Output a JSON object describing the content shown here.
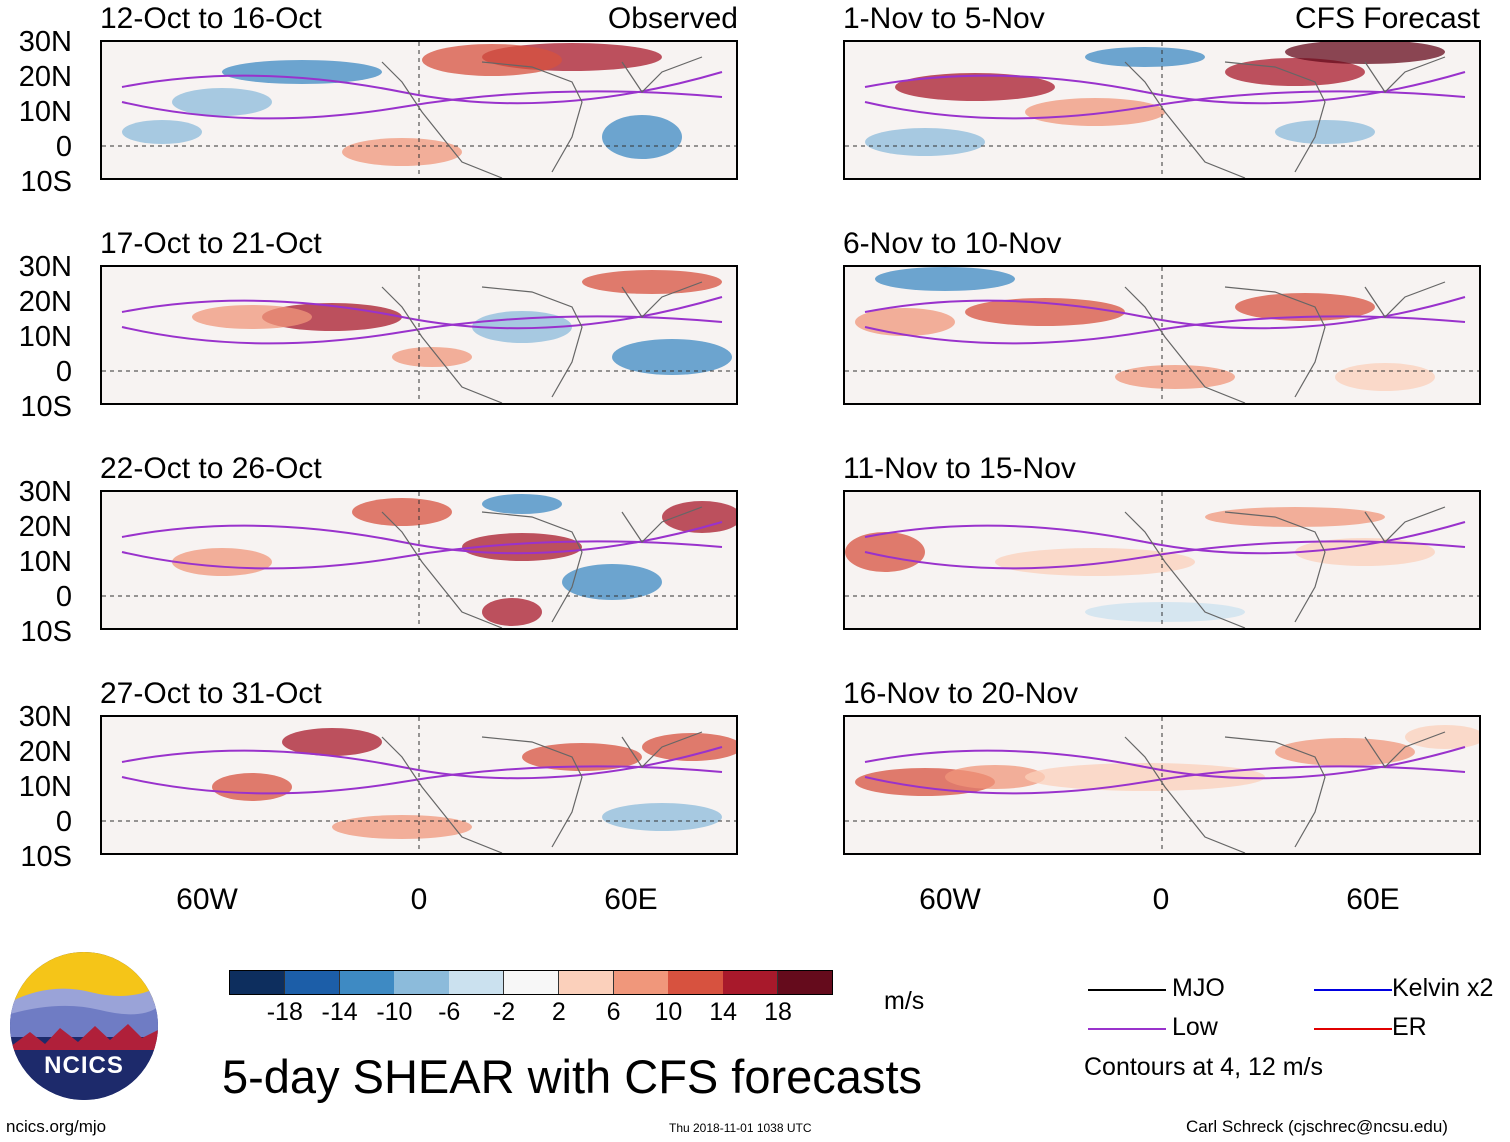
{
  "panels": [
    {
      "title": "12-Oct to 16-Oct",
      "tag": "Observed"
    },
    {
      "title": "17-Oct to 21-Oct",
      "tag": ""
    },
    {
      "title": "22-Oct to 26-Oct",
      "tag": ""
    },
    {
      "title": "27-Oct to 31-Oct",
      "tag": ""
    },
    {
      "title": "1-Nov to 5-Nov",
      "tag": "CFS Forecast"
    },
    {
      "title": "6-Nov to 10-Nov",
      "tag": ""
    },
    {
      "title": "11-Nov to 15-Nov",
      "tag": ""
    },
    {
      "title": "16-Nov to 20-Nov",
      "tag": ""
    }
  ],
  "lat_labels": [
    "30N",
    "20N",
    "10N",
    "0",
    "10S"
  ],
  "lon_labels": [
    "60W",
    "0",
    "60E"
  ],
  "colorbar": {
    "ticks": [
      "-18",
      "-14",
      "-10",
      "-6",
      "-2",
      "2",
      "6",
      "10",
      "14",
      "18"
    ],
    "colors": [
      "#0d2e5e",
      "#1c5ea8",
      "#3e8ac3",
      "#8cbbdb",
      "#cbe1ef",
      "#f7f7f7",
      "#fbd0bb",
      "#f0977b",
      "#d7523f",
      "#a8192b",
      "#650b1c"
    ],
    "units": "m/s"
  },
  "legend": {
    "items": [
      {
        "label": "MJO",
        "color": "#000000"
      },
      {
        "label": "Kelvin x2",
        "color": "#0000e0"
      },
      {
        "label": "Low",
        "color": "#9932cc"
      },
      {
        "label": "ER",
        "color": "#e00000"
      }
    ],
    "note": "Contours at 4, 12 m/s"
  },
  "main_title": "5-day SHEAR with CFS forecasts",
  "logo_text": "NCICS",
  "footer": {
    "left": "ncics.org/mjo",
    "center": "Thu 2018-11-01 1038 UTC",
    "right": "Carl Schreck (cjschrec@ncsu.edu)"
  }
}
